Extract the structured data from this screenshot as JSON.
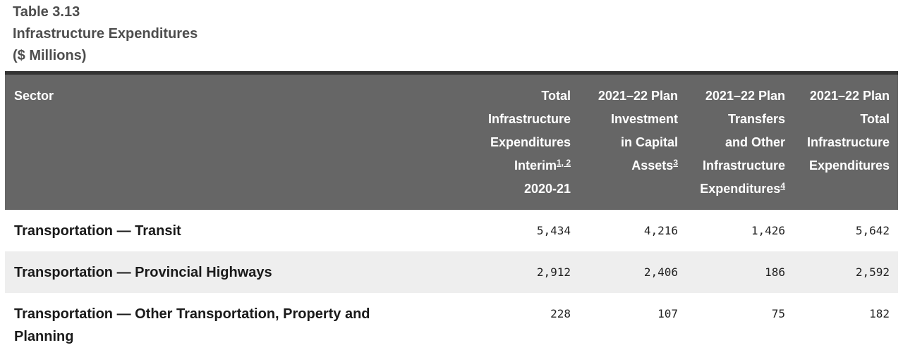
{
  "caption": {
    "line1": "Table 3.13",
    "line2": "Infrastructure Expenditures",
    "line3": "($ Millions)"
  },
  "table": {
    "headers": {
      "sector": "Sector",
      "col1": {
        "lines": [
          "Total",
          "Infrastructure",
          "Expenditures"
        ],
        "last_line": "Interim",
        "footnotes": "1, 2",
        "extra_line": "2020-21"
      },
      "col2": {
        "lines": [
          "2021–22 Plan",
          "Investment",
          "in Capital"
        ],
        "last_line": "Assets",
        "footnotes": "3"
      },
      "col3": {
        "lines": [
          "2021–22 Plan",
          "Transfers",
          "and Other",
          "Infrastructure"
        ],
        "last_line": "Expenditures",
        "footnotes": "4"
      },
      "col4": {
        "lines": [
          "2021–22 Plan",
          "Total",
          "Infrastructure",
          "Expenditures"
        ]
      }
    },
    "rows": [
      {
        "sector": "Transportation — Transit",
        "values": [
          "5,434",
          "4,216",
          "1,426",
          "5,642"
        ]
      },
      {
        "sector": "Transportation — Provincial Highways",
        "values": [
          "2,912",
          "2,406",
          "186",
          "2,592"
        ]
      },
      {
        "sector": "Transportation — Other Transportation, Property and Planning",
        "values": [
          "228",
          "107",
          "75",
          "182"
        ]
      }
    ]
  }
}
